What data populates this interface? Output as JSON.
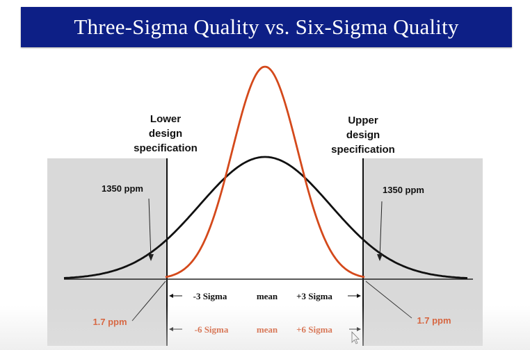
{
  "title": "Three-Sigma Quality vs. Six-Sigma Quality",
  "colors": {
    "title_bg": "#0d1f86",
    "three_sigma_curve": "#111111",
    "six_sigma_curve": "#d4491b",
    "shaded_region": "#d9d9d9",
    "accent_text": "#d4491b"
  },
  "labels": {
    "lower_spec": [
      "Lower",
      "design",
      "specification"
    ],
    "upper_spec": [
      "Upper",
      "design",
      "specification"
    ],
    "left_ppm": "1350 ppm",
    "right_ppm": "1350 ppm",
    "left_small_ppm": "1.7 ppm",
    "right_small_ppm": "1.7 ppm",
    "minus_three_sigma": "-3 Sigma",
    "mean": "mean",
    "plus_three_sigma": "+3 Sigma",
    "minus_six_sigma": "-6 Sigma",
    "mean_six": "mean",
    "plus_six_sigma": "+6 Sigma"
  }
}
